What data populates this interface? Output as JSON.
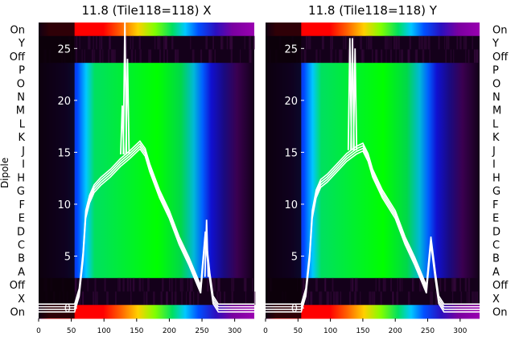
{
  "chart_data": [
    {
      "type": "heatmap",
      "title": "11.8 (Tile118=118) X",
      "ylabel": "Dipole",
      "xlim": [
        0,
        330
      ],
      "x_ticks": [
        0,
        50,
        100,
        150,
        200,
        250,
        300
      ],
      "dipole_labels": [
        "On",
        "Y",
        "Off",
        "P",
        "O",
        "N",
        "M",
        "L",
        "K",
        "J",
        "I",
        "H",
        "G",
        "F",
        "E",
        "D",
        "C",
        "B",
        "A",
        "Off",
        "X",
        "On"
      ],
      "overlay_ylim": [
        -1,
        27.5
      ],
      "overlay_ticks": [
        0,
        5,
        10,
        15,
        20,
        25
      ],
      "overlay_curve": {
        "x": [
          0,
          55,
          62,
          68,
          72,
          78,
          85,
          95,
          110,
          125,
          140,
          155,
          163,
          170,
          185,
          200,
          215,
          230,
          240,
          248,
          255,
          262,
          267,
          275,
          330
        ],
        "y": [
          0,
          0,
          1.5,
          5,
          9,
          10.5,
          11.5,
          12.2,
          13,
          14,
          14.8,
          15.7,
          15,
          13.5,
          11,
          9,
          6.5,
          4.5,
          3,
          1.8,
          7,
          3,
          0.8,
          0,
          0
        ]
      },
      "spikes": [
        {
          "x": 128,
          "y": 19.5
        },
        {
          "x": 132,
          "y": 28
        },
        {
          "x": 136,
          "y": 24
        },
        {
          "x": 257,
          "y": 8.5
        }
      ]
    },
    {
      "type": "heatmap",
      "title": "11.8 (Tile118=118) Y",
      "xlim": [
        0,
        330
      ],
      "x_ticks": [
        0,
        50,
        100,
        150,
        200,
        250,
        300
      ],
      "dipole_labels": [
        "On",
        "Y",
        "Off",
        "P",
        "O",
        "N",
        "M",
        "L",
        "K",
        "J",
        "I",
        "H",
        "G",
        "F",
        "E",
        "D",
        "C",
        "B",
        "A",
        "Off",
        "X",
        "On"
      ],
      "overlay_ylim": [
        -1,
        27.5
      ],
      "overlay_ticks": [
        0,
        5,
        10,
        15,
        20,
        25
      ],
      "overlay_curve": {
        "x": [
          0,
          55,
          62,
          68,
          72,
          78,
          85,
          95,
          110,
          125,
          140,
          150,
          158,
          165,
          180,
          200,
          215,
          230,
          240,
          248,
          255,
          262,
          267,
          275,
          330
        ],
        "y": [
          0,
          0,
          1.5,
          5,
          9,
          11,
          12,
          12.5,
          13.5,
          14.5,
          15.2,
          15.5,
          14.5,
          13,
          11,
          9,
          6.5,
          4.5,
          3,
          1.8,
          6.5,
          3,
          0.8,
          0,
          0
        ]
      },
      "spikes": [
        {
          "x": 130,
          "y": 26
        },
        {
          "x": 134,
          "y": 26
        },
        {
          "x": 138,
          "y": 25
        }
      ]
    }
  ]
}
